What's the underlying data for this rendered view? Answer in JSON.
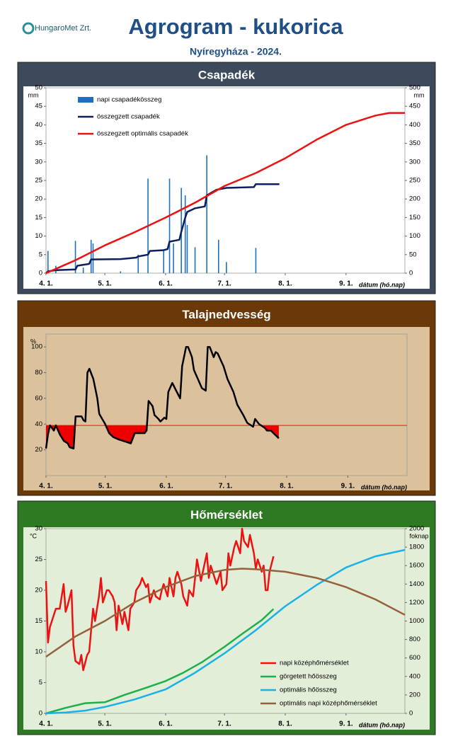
{
  "header": {
    "logo": "HungaroMet Zrt.",
    "title": "Agrogram - kukorica",
    "subtitle": "Nyíregyháza  - 2024."
  },
  "chart_data": [
    {
      "type": "combo",
      "title": "Csapadék",
      "panel_color": "#3d4a5b",
      "inner_color": "#ffffff",
      "plot_color": "#ffffff",
      "x_label": "dátum (hó.nap)",
      "y_unit": "mm",
      "y2_unit": "mm",
      "legend": "upper left",
      "xlim": [
        0,
        183
      ],
      "xticks": [
        {
          "value": 0,
          "label": "4. 1."
        },
        {
          "value": 30,
          "label": "5. 1."
        },
        {
          "value": 61,
          "label": "6. 1."
        },
        {
          "value": 91,
          "label": "7. 1."
        },
        {
          "value": 122,
          "label": "8. 1."
        },
        {
          "value": 153,
          "label": "9. 1."
        }
      ],
      "ylim": [
        0,
        50
      ],
      "yticks": [
        0,
        5,
        10,
        15,
        20,
        25,
        30,
        35,
        40,
        45,
        50
      ],
      "y2lim": [
        0,
        500
      ],
      "y2ticks": [
        0,
        50,
        100,
        150,
        200,
        250,
        300,
        350,
        400,
        450,
        500
      ],
      "series": [
        {
          "name": "napi csapadékösszeg",
          "type": "bar",
          "color": "#1f6fc0",
          "x": [
            1,
            5,
            15,
            19,
            23,
            24,
            38,
            47,
            52,
            60,
            63,
            65,
            69,
            71,
            72,
            76,
            82,
            88,
            92,
            107
          ],
          "values": [
            6,
            2,
            8.7,
            1.5,
            9,
            8,
            0.5,
            5,
            25.5,
            6,
            25.5,
            8,
            23,
            21,
            13,
            7,
            31.8,
            9,
            3,
            6.8
          ]
        },
        {
          "name": "összegzett csapadék",
          "type": "line",
          "axis": "y2",
          "color": "#0d1f5c",
          "x": [
            0,
            1,
            5,
            15,
            16,
            22,
            23,
            38,
            46,
            47,
            52,
            53,
            60,
            62,
            63,
            68,
            69,
            71,
            72,
            76,
            81,
            82,
            87,
            92,
            106,
            107,
            119
          ],
          "values": [
            0,
            5,
            8,
            10,
            20,
            25,
            37,
            38,
            42,
            45,
            50,
            60,
            62,
            65,
            85,
            90,
            112,
            150,
            165,
            175,
            180,
            210,
            225,
            230,
            232,
            240,
            240
          ]
        },
        {
          "name": "összegzett optimális csapadék",
          "type": "line",
          "axis": "y2",
          "color": "#ee1111",
          "x": [
            0,
            15,
            30,
            45,
            61,
            76,
            91,
            107,
            122,
            138,
            153,
            168,
            175,
            183
          ],
          "values": [
            0,
            35,
            75,
            110,
            150,
            190,
            235,
            270,
            310,
            360,
            400,
            425,
            432,
            432
          ]
        }
      ]
    },
    {
      "type": "line",
      "title": "Talajnedvesség",
      "panel_color": "#6b3808",
      "inner_color": "#dcc29c",
      "plot_color": "#dcc29c",
      "x_label": "dátum (hó.nap)",
      "y_unit": "%",
      "xlim": [
        0,
        183
      ],
      "xticks": [
        {
          "value": 0,
          "label": "4. 1."
        },
        {
          "value": 30,
          "label": "5. 1."
        },
        {
          "value": 61,
          "label": "6. 1."
        },
        {
          "value": 91,
          "label": "7. 1."
        },
        {
          "value": 122,
          "label": "8. 1."
        },
        {
          "value": 153,
          "label": "9. 1."
        }
      ],
      "ylim": [
        0,
        110
      ],
      "yticks": [
        20,
        40,
        60,
        80,
        100
      ],
      "reference_line": {
        "value": 39,
        "color": "#ee1111"
      },
      "series": [
        {
          "type": "line",
          "color": "#000000",
          "fill_below_reference": "#ee0000",
          "x": [
            0,
            1,
            2,
            4,
            5,
            7,
            9,
            11,
            12,
            14,
            15,
            18,
            19,
            20,
            21,
            22,
            24,
            26,
            27,
            30,
            32,
            34,
            37,
            41,
            43,
            45,
            46,
            50,
            51,
            52,
            54,
            55,
            57,
            58,
            60,
            61,
            62,
            64,
            66,
            68,
            69,
            71,
            72,
            74,
            75,
            77,
            79,
            81,
            82,
            83,
            85,
            86,
            87,
            90,
            92,
            95,
            97,
            100,
            102,
            105,
            106,
            108,
            111,
            112,
            114,
            116,
            118
          ],
          "values": [
            21,
            32,
            39,
            35,
            39,
            32,
            27,
            25,
            22,
            21,
            46,
            46,
            43,
            42,
            80,
            83,
            75,
            60,
            48,
            40,
            33,
            30,
            28,
            26,
            25,
            33,
            33,
            33,
            35,
            58,
            54,
            47,
            44,
            42,
            45,
            44,
            65,
            72,
            66,
            60,
            85,
            100,
            100,
            92,
            82,
            75,
            68,
            66,
            100,
            100,
            92,
            96,
            95,
            85,
            75,
            65,
            55,
            47,
            41,
            38,
            44,
            40,
            37,
            35,
            35,
            32,
            29
          ]
        }
      ]
    },
    {
      "type": "combo",
      "title": "Hőmérséklet",
      "panel_color": "#2e7a22",
      "inner_color": "#e3eed8",
      "plot_color": "#e3eed8",
      "x_label": "dátum (hó.nap)",
      "y_unit": "°C",
      "y2_unit": "foknap",
      "legend": "lower right",
      "xlim": [
        0,
        183
      ],
      "xticks": [
        {
          "value": 0,
          "label": "4. 1."
        },
        {
          "value": 30,
          "label": "5. 1."
        },
        {
          "value": 61,
          "label": "6. 1."
        },
        {
          "value": 91,
          "label": "7. 1."
        },
        {
          "value": 122,
          "label": "8. 1."
        },
        {
          "value": 153,
          "label": "9. 1."
        }
      ],
      "ylim": [
        0,
        30
      ],
      "yticks": [
        0,
        5,
        10,
        15,
        20,
        25,
        30
      ],
      "y2lim": [
        0,
        2000
      ],
      "y2ticks": [
        0,
        200,
        400,
        600,
        800,
        1000,
        1200,
        1400,
        1600,
        1800,
        2000
      ],
      "series": [
        {
          "name": "napi középhőmérséklet",
          "type": "line",
          "color": "#ee1111",
          "x": [
            0,
            1,
            2,
            4,
            5,
            7,
            9,
            10,
            11,
            13,
            14,
            15,
            17,
            18,
            19,
            21,
            22,
            24,
            25,
            27,
            28,
            29,
            31,
            32,
            34,
            35,
            36,
            37,
            39,
            40,
            42,
            43,
            45,
            46,
            48,
            49,
            51,
            52,
            53,
            55,
            56,
            58,
            59,
            60,
            62,
            63,
            65,
            66,
            67,
            69,
            70,
            72,
            73,
            75,
            76,
            77,
            79,
            80,
            82,
            83,
            84,
            86,
            87,
            89,
            90,
            92,
            93,
            94,
            96,
            97,
            99,
            100,
            101,
            103,
            104,
            106,
            107,
            108,
            110,
            111,
            112,
            113,
            114,
            116
          ],
          "values": [
            21.5,
            11.5,
            14,
            16,
            17,
            17,
            21,
            16.5,
            17.5,
            20,
            11,
            8.5,
            8,
            9.5,
            7,
            9.5,
            10,
            17,
            15,
            19,
            22,
            18,
            20,
            20,
            19,
            18,
            13.5,
            17.5,
            14.5,
            16.5,
            13.5,
            17,
            18,
            20,
            21,
            22,
            20.5,
            21,
            18,
            20,
            19,
            18.5,
            20,
            21,
            19,
            22,
            19,
            22,
            23,
            21,
            19,
            17.5,
            20,
            19,
            22,
            25,
            21.5,
            23,
            26,
            22,
            24,
            22,
            21,
            23,
            20,
            21,
            26,
            24,
            27,
            28,
            26,
            30,
            28,
            27,
            29,
            26,
            23.5,
            25,
            23,
            24,
            20,
            20,
            23,
            25.5
          ]
        },
        {
          "name": "görgetett hőösszeg",
          "type": "line",
          "axis": "y2",
          "color": "#1db04a",
          "x": [
            0,
            10,
            20,
            30,
            40,
            50,
            61,
            70,
            80,
            91,
            100,
            110,
            116
          ],
          "values": [
            0,
            60,
            110,
            120,
            200,
            270,
            350,
            440,
            560,
            720,
            860,
            1010,
            1130
          ]
        },
        {
          "name": "optimális hőösszeg",
          "type": "line",
          "axis": "y2",
          "color": "#1ab0e8",
          "x": [
            0,
            10,
            20,
            30,
            45,
            61,
            76,
            91,
            107,
            122,
            138,
            153,
            168,
            183
          ],
          "values": [
            0,
            10,
            30,
            70,
            150,
            260,
            440,
            650,
            900,
            1160,
            1390,
            1580,
            1700,
            1770
          ]
        },
        {
          "name": "optimális napi középhőmérséklet",
          "type": "line",
          "color": "#96603a",
          "x": [
            0,
            15,
            30,
            45,
            61,
            76,
            91,
            100,
            107,
            122,
            138,
            153,
            168,
            183
          ],
          "values": [
            9.2,
            12.5,
            15,
            18,
            20.5,
            22.3,
            23.3,
            23.5,
            23.4,
            23,
            22,
            20.5,
            18.5,
            16
          ]
        }
      ]
    }
  ]
}
